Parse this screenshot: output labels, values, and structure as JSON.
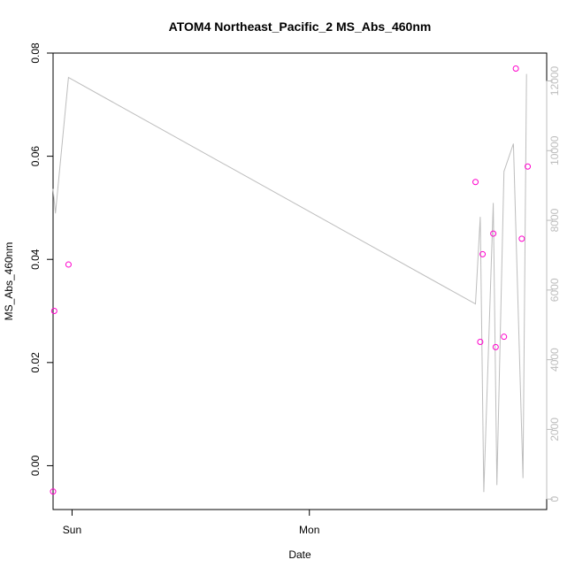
{
  "chart_data": {
    "type": "scatter",
    "title": "ATOM4 Northeast_Pacific_2 MS_Abs_460nm",
    "xlabel": "Date",
    "ylabel": "MS_Abs_460nm",
    "x_axis": {
      "min_day": -0.08,
      "max_day": 2.0,
      "ticks": [
        {
          "day": 0,
          "label": "Sun"
        },
        {
          "day": 1,
          "label": "Mon"
        }
      ]
    },
    "y_left": {
      "min": -0.0085,
      "max": 0.08,
      "ticks": [
        {
          "value": 0.0,
          "label": "0.00"
        },
        {
          "value": 0.02,
          "label": "0.02"
        },
        {
          "value": 0.04,
          "label": "0.04"
        },
        {
          "value": 0.06,
          "label": "0.06"
        },
        {
          "value": 0.08,
          "label": "0.08"
        }
      ]
    },
    "y_right": {
      "min": -300,
      "max": 12800,
      "ticks": [
        {
          "value": 0,
          "label": "0"
        },
        {
          "value": 2000,
          "label": "2000"
        },
        {
          "value": 4000,
          "label": "4000"
        },
        {
          "value": 6000,
          "label": "6000"
        },
        {
          "value": 8000,
          "label": "8000"
        },
        {
          "value": 10000,
          "label": "10000"
        },
        {
          "value": 12000,
          "label": "12000"
        }
      ]
    },
    "series": [
      {
        "axis": "left",
        "color": "#ff00cc",
        "marker": "circle",
        "points": [
          {
            "day": -0.08,
            "y": -0.005
          },
          {
            "day": -0.075,
            "y": 0.03
          },
          {
            "day": -0.015,
            "y": 0.039
          },
          {
            "day": 1.7,
            "y": 0.055
          },
          {
            "day": 1.72,
            "y": 0.024
          },
          {
            "day": 1.73,
            "y": 0.041
          },
          {
            "day": 1.775,
            "y": 0.045
          },
          {
            "day": 1.785,
            "y": 0.023
          },
          {
            "day": 1.82,
            "y": 0.025
          },
          {
            "day": 1.87,
            "y": 0.077
          },
          {
            "day": 1.895,
            "y": 0.044
          },
          {
            "day": 1.92,
            "y": 0.058
          }
        ]
      },
      {
        "axis": "right",
        "color": "#bdbdbd",
        "type": "line",
        "points": [
          {
            "day": -0.08,
            "y": 8900
          },
          {
            "day": -0.07,
            "y": 8200
          },
          {
            "day": -0.015,
            "y": 12100
          },
          {
            "day": 1.7,
            "y": 5600
          },
          {
            "day": 1.72,
            "y": 8100
          },
          {
            "day": 1.735,
            "y": 200
          },
          {
            "day": 1.775,
            "y": 8500
          },
          {
            "day": 1.79,
            "y": 400
          },
          {
            "day": 1.82,
            "y": 9400
          },
          {
            "day": 1.86,
            "y": 10200
          },
          {
            "day": 1.9,
            "y": 600
          },
          {
            "day": 1.915,
            "y": 12200
          }
        ]
      }
    ],
    "grid": false,
    "legend": "none"
  }
}
